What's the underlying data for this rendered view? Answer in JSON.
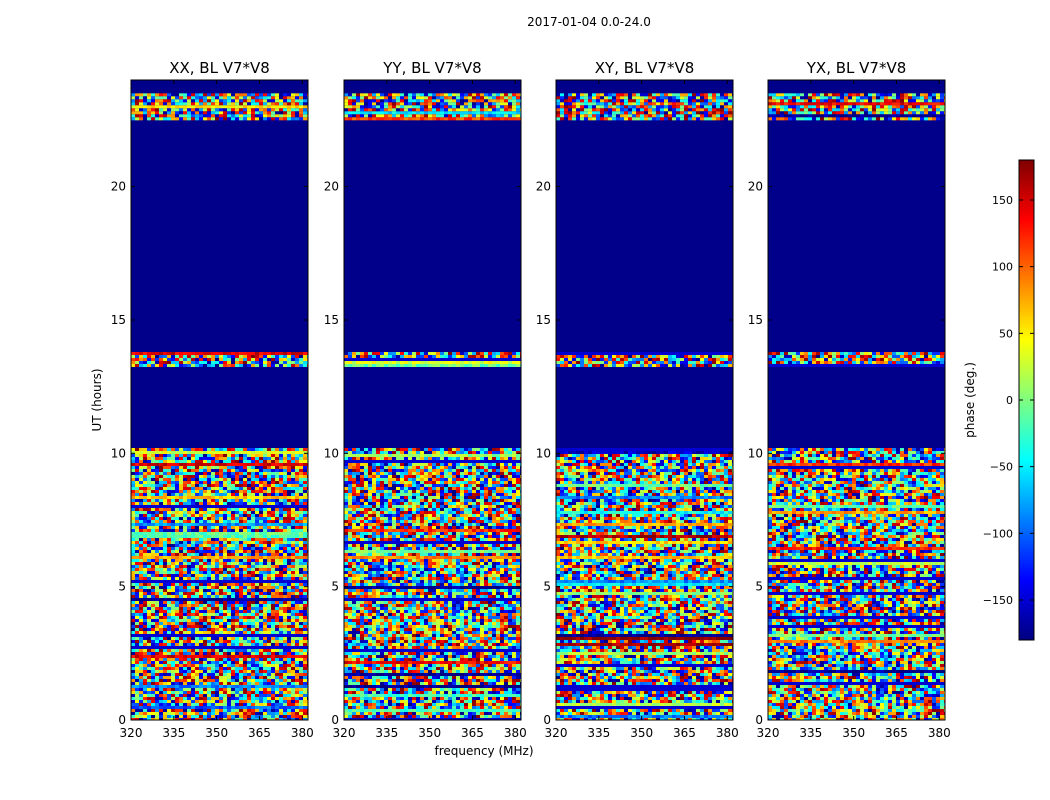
{
  "figure_title": "2017-01-04 0.0-24.0",
  "chart_data": {
    "type": "heatmap",
    "title": "2017-01-04 0.0-24.0",
    "xlabel": "frequency (MHz)",
    "ylabel": "UT (hours)",
    "xlim": [
      320,
      382
    ],
    "ylim": [
      0,
      24
    ],
    "x_ticks": [
      320,
      335,
      350,
      365,
      380
    ],
    "y_ticks": [
      0,
      5,
      10,
      15,
      20
    ],
    "colorbar": {
      "label": "phase (deg.)",
      "range": [
        -180,
        180
      ],
      "ticks": [
        -150,
        -100,
        -50,
        0,
        50,
        100,
        150
      ],
      "tick_labels": [
        "−150",
        "−100",
        "−50",
        "0",
        "50",
        "100",
        "150"
      ],
      "colormap": "jet",
      "colors": [
        "#00007f",
        "#0000ff",
        "#00ffff",
        "#7fff7f",
        "#ffff00",
        "#ff0000",
        "#7f0000"
      ]
    },
    "background_value_color": "#00008b",
    "data_coverage_hours": [
      {
        "start": 0.0,
        "end": 10.2,
        "state": "noisy phase"
      },
      {
        "start": 10.2,
        "end": 13.3,
        "state": "flagged"
      },
      {
        "start": 13.3,
        "end": 13.8,
        "state": "noisy phase"
      },
      {
        "start": 13.8,
        "end": 22.5,
        "state": "flagged"
      },
      {
        "start": 22.5,
        "end": 23.5,
        "state": "noisy phase"
      },
      {
        "start": 23.5,
        "end": 24.0,
        "state": "flagged"
      }
    ],
    "panels": [
      {
        "title": "XX, BL V7*V8"
      },
      {
        "title": "YY, BL V7*V8"
      },
      {
        "title": "XY, BL V7*V8"
      },
      {
        "title": "YX, BL V7*V8"
      }
    ]
  }
}
